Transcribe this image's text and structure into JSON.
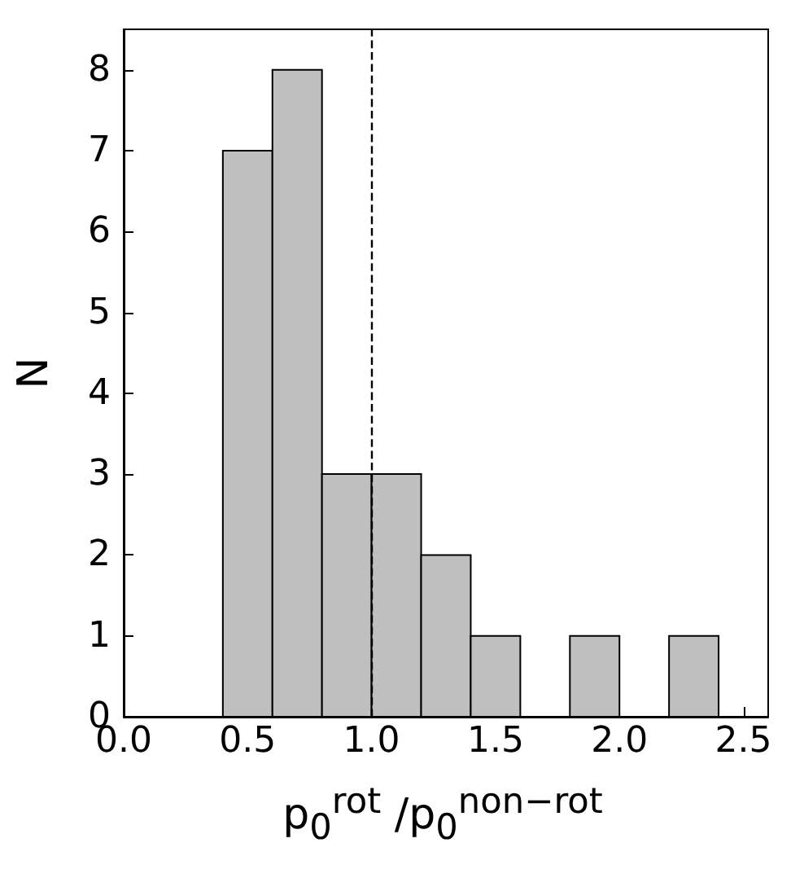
{
  "chart_data": {
    "type": "histogram",
    "bins": [
      0.4,
      0.6,
      0.8,
      1.0,
      1.2,
      1.4,
      1.6,
      1.8,
      2.0,
      2.2,
      2.4
    ],
    "values": [
      7,
      8,
      3,
      3,
      2,
      1,
      0,
      1,
      0,
      1
    ],
    "color": "#bfbfbf",
    "xlabel": "p$_{0}$$^{rot}$ /p$_{0}$$^{non−rot}$",
    "ylabel": "N",
    "xlim": [
      0,
      2.6
    ],
    "xticks": [
      {
        "value": 0,
        "label": "0.0"
      },
      {
        "value": 0.5,
        "label": "0.5"
      },
      {
        "value": 1,
        "label": "1.0"
      },
      {
        "value": 1.5,
        "label": "1.5"
      },
      {
        "value": 2,
        "label": "2.0"
      },
      {
        "value": 2.5,
        "label": "2.5"
      }
    ],
    "ylim": [
      0,
      8.5
    ],
    "yticks": [
      0,
      1,
      2,
      3,
      4,
      5,
      6,
      7,
      8
    ],
    "ref_lines": [
      {
        "axis": "x",
        "value": 1.0,
        "line_style": "dashed",
        "color": "#000000"
      }
    ],
    "grid": false
  }
}
